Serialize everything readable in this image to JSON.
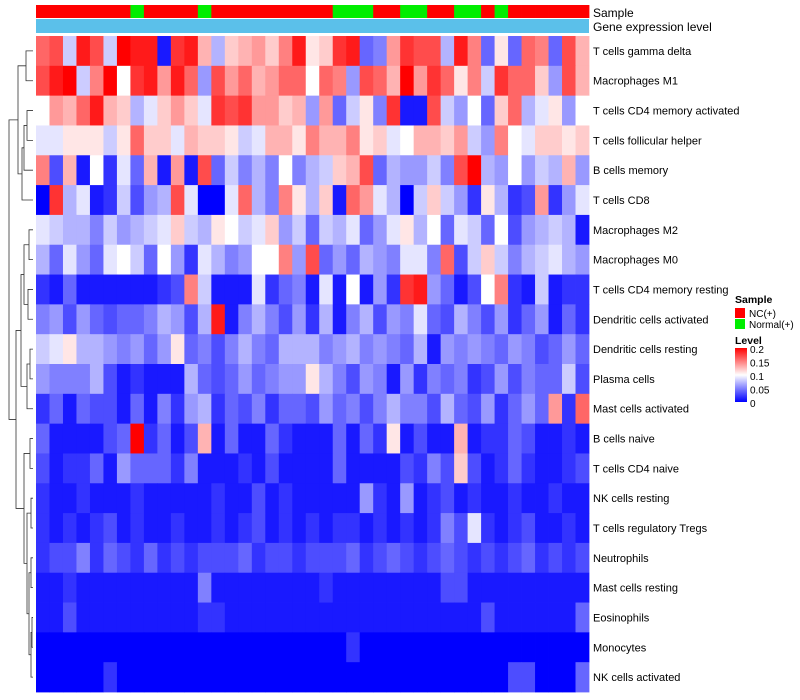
{
  "chart_data": {
    "type": "heatmap",
    "row_labels": [
      "T cells gamma delta",
      "Macrophages M1",
      "T cells CD4 memory activated",
      "T cells follicular helper",
      "B cells memory",
      "T cells CD8",
      "Macrophages M2",
      "Macrophages M0",
      "T cells CD4 memory resting",
      "Dendritic cells activated",
      "Dendritic cells resting",
      "Plasma cells",
      "Mast cells activated",
      "B cells naive",
      "T cells CD4 naive",
      "NK cells resting",
      "T cells regulatory  Tregs",
      "Neutrophils",
      "Mast cells resting",
      "Eosinophils",
      "Monocytes",
      "NK cells activated"
    ],
    "sample_groups": [
      "NC",
      "NC",
      "NC",
      "NC",
      "NC",
      "NC",
      "NC",
      "Normal",
      "NC",
      "NC",
      "NC",
      "NC",
      "Normal",
      "NC",
      "NC",
      "NC",
      "NC",
      "NC",
      "NC",
      "NC",
      "NC",
      "NC",
      "Normal",
      "Normal",
      "Normal",
      "NC",
      "NC",
      "Normal",
      "Normal",
      "NC",
      "NC",
      "Normal",
      "Normal",
      "NC",
      "Normal",
      "NC",
      "NC",
      "NC",
      "NC",
      "NC",
      "NC"
    ],
    "annotation_labels": {
      "sample": "Sample",
      "gene_level": "Gene expression level"
    },
    "legend": {
      "sample_title": "Sample",
      "sample_entries": [
        {
          "label": "NC(+)",
          "color": "#ff0000"
        },
        {
          "label": "Normal(+)",
          "color": "#00ee00"
        }
      ],
      "level_title": "Level",
      "level_ticks": [
        "0.2",
        "0.15",
        "0.1",
        "0.05",
        "0"
      ],
      "level_range": [
        0,
        0.2
      ]
    },
    "gene_level_color": "#5bc0ea",
    "colorscale": {
      "low": "#0000ff",
      "mid": "#ffffff",
      "high": "#ff0000",
      "mid_value": 0.1
    },
    "values": [
      [
        0.16,
        0.17,
        0.08,
        0.19,
        0.17,
        0.08,
        0.2,
        0.19,
        0.19,
        0.01,
        0.18,
        0.19,
        0.13,
        0.07,
        0.12,
        0.13,
        0.14,
        0.12,
        0.15,
        0.19,
        0.11,
        0.12,
        0.18,
        0.19,
        0.04,
        0.05,
        0.14,
        0.18,
        0.17,
        0.17,
        0.07,
        0.19,
        0.15,
        0.04,
        0.11,
        0.04,
        0.16,
        0.15,
        0.04,
        0.17,
        0.13
      ],
      [
        0.17,
        0.19,
        0.2,
        0.08,
        0.15,
        0.2,
        0.1,
        0.18,
        0.19,
        0.14,
        0.19,
        0.16,
        0.06,
        0.17,
        0.14,
        0.16,
        0.13,
        0.14,
        0.16,
        0.16,
        0.1,
        0.16,
        0.15,
        0.06,
        0.17,
        0.16,
        0.13,
        0.2,
        0.14,
        0.18,
        0.16,
        0.11,
        0.15,
        0.08,
        0.18,
        0.16,
        0.16,
        0.12,
        0.06,
        0.17,
        0.13
      ],
      [
        0.1,
        0.14,
        0.13,
        0.16,
        0.19,
        0.13,
        0.12,
        0.07,
        0.09,
        0.12,
        0.14,
        0.12,
        0.09,
        0.18,
        0.17,
        0.18,
        0.14,
        0.14,
        0.12,
        0.13,
        0.06,
        0.14,
        0.04,
        0.08,
        0.11,
        0.05,
        0.18,
        0.01,
        0.01,
        0.17,
        0.08,
        0.06,
        0.1,
        0.04,
        0.12,
        0.16,
        0.07,
        0.09,
        0.11,
        0.06,
        0.1
      ],
      [
        0.09,
        0.09,
        0.11,
        0.11,
        0.11,
        0.08,
        0.11,
        0.16,
        0.12,
        0.12,
        0.09,
        0.13,
        0.12,
        0.12,
        0.11,
        0.08,
        0.09,
        0.13,
        0.13,
        0.11,
        0.15,
        0.13,
        0.13,
        0.15,
        0.11,
        0.12,
        0.09,
        0.1,
        0.13,
        0.13,
        0.12,
        0.14,
        0.08,
        0.06,
        0.15,
        0.1,
        0.09,
        0.12,
        0.12,
        0.11,
        0.12
      ],
      [
        0.15,
        0.03,
        0.13,
        0.01,
        0.1,
        0.02,
        0.09,
        0.04,
        0.13,
        0.01,
        0.14,
        0.01,
        0.17,
        0.04,
        0.08,
        0.05,
        0.07,
        0.05,
        0.1,
        0.05,
        0.07,
        0.08,
        0.12,
        0.13,
        0.17,
        0.04,
        0.07,
        0.06,
        0.06,
        0.08,
        0.05,
        0.17,
        0.2,
        0.07,
        0.06,
        0.1,
        0.06,
        0.08,
        0.07,
        0.13,
        0.06
      ],
      [
        0.0,
        0.18,
        0.07,
        0.09,
        0.01,
        0.02,
        0.08,
        0.03,
        0.06,
        0.07,
        0.17,
        0.09,
        0.0,
        0.0,
        0.09,
        0.16,
        0.07,
        0.05,
        0.15,
        0.11,
        0.07,
        0.12,
        0.01,
        0.16,
        0.14,
        0.09,
        0.07,
        0.0,
        0.08,
        0.12,
        0.08,
        0.06,
        0.02,
        0.11,
        0.07,
        0.02,
        0.03,
        0.14,
        0.02,
        0.06,
        0.09
      ],
      [
        0.09,
        0.08,
        0.07,
        0.07,
        0.05,
        0.08,
        0.06,
        0.07,
        0.08,
        0.09,
        0.12,
        0.08,
        0.07,
        0.11,
        0.1,
        0.08,
        0.09,
        0.12,
        0.06,
        0.08,
        0.04,
        0.08,
        0.07,
        0.09,
        0.04,
        0.06,
        0.09,
        0.11,
        0.07,
        0.1,
        0.04,
        0.09,
        0.08,
        0.04,
        0.1,
        0.03,
        0.06,
        0.07,
        0.08,
        0.07,
        0.01
      ],
      [
        0.07,
        0.04,
        0.09,
        0.06,
        0.04,
        0.09,
        0.1,
        0.08,
        0.04,
        0.1,
        0.06,
        0.02,
        0.09,
        0.07,
        0.05,
        0.06,
        0.1,
        0.1,
        0.15,
        0.06,
        0.17,
        0.04,
        0.06,
        0.04,
        0.07,
        0.06,
        0.05,
        0.09,
        0.09,
        0.05,
        0.16,
        0.03,
        0.08,
        0.12,
        0.08,
        0.05,
        0.07,
        0.08,
        0.09,
        0.07,
        0.06
      ],
      [
        0.02,
        0.01,
        0.04,
        0.01,
        0.01,
        0.01,
        0.01,
        0.01,
        0.01,
        0.02,
        0.03,
        0.15,
        0.08,
        0.01,
        0.01,
        0.01,
        0.09,
        0.02,
        0.04,
        0.05,
        0.01,
        0.09,
        0.01,
        0.1,
        0.01,
        0.06,
        0.02,
        0.18,
        0.19,
        0.06,
        0.04,
        0.01,
        0.03,
        0.1,
        0.15,
        0.02,
        0.01,
        0.08,
        0.01,
        0.02,
        0.02
      ],
      [
        0.05,
        0.06,
        0.03,
        0.06,
        0.04,
        0.03,
        0.04,
        0.04,
        0.05,
        0.07,
        0.06,
        0.03,
        0.07,
        0.19,
        0.01,
        0.05,
        0.07,
        0.05,
        0.03,
        0.06,
        0.02,
        0.07,
        0.01,
        0.05,
        0.07,
        0.03,
        0.06,
        0.05,
        0.09,
        0.04,
        0.03,
        0.07,
        0.05,
        0.03,
        0.06,
        0.02,
        0.04,
        0.06,
        0.01,
        0.04,
        0.02
      ],
      [
        0.08,
        0.09,
        0.11,
        0.07,
        0.07,
        0.06,
        0.05,
        0.06,
        0.04,
        0.06,
        0.11,
        0.04,
        0.05,
        0.03,
        0.05,
        0.07,
        0.05,
        0.04,
        0.07,
        0.07,
        0.07,
        0.05,
        0.06,
        0.07,
        0.05,
        0.06,
        0.05,
        0.04,
        0.07,
        0.01,
        0.06,
        0.05,
        0.06,
        0.05,
        0.04,
        0.06,
        0.05,
        0.03,
        0.04,
        0.06,
        0.04
      ],
      [
        0.06,
        0.05,
        0.05,
        0.05,
        0.07,
        0.03,
        0.01,
        0.02,
        0.01,
        0.01,
        0.01,
        0.07,
        0.04,
        0.03,
        0.04,
        0.06,
        0.04,
        0.05,
        0.06,
        0.06,
        0.11,
        0.07,
        0.05,
        0.03,
        0.06,
        0.05,
        0.01,
        0.06,
        0.02,
        0.05,
        0.04,
        0.05,
        0.02,
        0.03,
        0.06,
        0.03,
        0.05,
        0.04,
        0.04,
        0.08,
        0.03
      ],
      [
        0.02,
        0.04,
        0.01,
        0.04,
        0.03,
        0.03,
        0.01,
        0.04,
        0.01,
        0.05,
        0.02,
        0.06,
        0.07,
        0.02,
        0.04,
        0.03,
        0.05,
        0.02,
        0.04,
        0.04,
        0.03,
        0.06,
        0.04,
        0.05,
        0.03,
        0.05,
        0.07,
        0.05,
        0.05,
        0.03,
        0.07,
        0.04,
        0.03,
        0.06,
        0.02,
        0.04,
        0.06,
        0.04,
        0.14,
        0.02,
        0.16
      ],
      [
        0.04,
        0.01,
        0.01,
        0.01,
        0.01,
        0.03,
        0.04,
        0.2,
        0.02,
        0.04,
        0.01,
        0.03,
        0.13,
        0.01,
        0.04,
        0.01,
        0.01,
        0.04,
        0.02,
        0.01,
        0.01,
        0.01,
        0.04,
        0.01,
        0.04,
        0.02,
        0.11,
        0.01,
        0.03,
        0.01,
        0.01,
        0.13,
        0.01,
        0.02,
        0.02,
        0.04,
        0.03,
        0.01,
        0.01,
        0.02,
        0.01
      ],
      [
        0.03,
        0.01,
        0.02,
        0.02,
        0.04,
        0.01,
        0.06,
        0.04,
        0.04,
        0.04,
        0.02,
        0.05,
        0.01,
        0.01,
        0.01,
        0.02,
        0.01,
        0.03,
        0.01,
        0.01,
        0.01,
        0.01,
        0.04,
        0.01,
        0.01,
        0.01,
        0.01,
        0.03,
        0.02,
        0.05,
        0.03,
        0.12,
        0.03,
        0.01,
        0.02,
        0.04,
        0.02,
        0.01,
        0.01,
        0.02,
        0.03
      ],
      [
        0.02,
        0.01,
        0.01,
        0.02,
        0.01,
        0.01,
        0.01,
        0.02,
        0.01,
        0.01,
        0.01,
        0.01,
        0.01,
        0.02,
        0.01,
        0.01,
        0.03,
        0.01,
        0.02,
        0.01,
        0.01,
        0.01,
        0.01,
        0.01,
        0.06,
        0.02,
        0.01,
        0.06,
        0.01,
        0.02,
        0.03,
        0.01,
        0.02,
        0.01,
        0.01,
        0.02,
        0.01,
        0.01,
        0.02,
        0.01,
        0.01
      ],
      [
        0.02,
        0.01,
        0.02,
        0.01,
        0.02,
        0.03,
        0.01,
        0.02,
        0.01,
        0.01,
        0.02,
        0.01,
        0.01,
        0.02,
        0.01,
        0.02,
        0.03,
        0.01,
        0.02,
        0.01,
        0.02,
        0.01,
        0.02,
        0.02,
        0.01,
        0.02,
        0.01,
        0.02,
        0.01,
        0.02,
        0.05,
        0.03,
        0.09,
        0.02,
        0.01,
        0.02,
        0.03,
        0.01,
        0.01,
        0.02,
        0.01
      ],
      [
        0.02,
        0.03,
        0.03,
        0.05,
        0.02,
        0.04,
        0.03,
        0.02,
        0.04,
        0.02,
        0.03,
        0.02,
        0.03,
        0.03,
        0.03,
        0.04,
        0.02,
        0.03,
        0.03,
        0.02,
        0.03,
        0.03,
        0.03,
        0.04,
        0.02,
        0.03,
        0.04,
        0.03,
        0.02,
        0.03,
        0.04,
        0.03,
        0.02,
        0.03,
        0.02,
        0.03,
        0.04,
        0.02,
        0.03,
        0.02,
        0.03
      ],
      [
        0.01,
        0.01,
        0.02,
        0.01,
        0.01,
        0.01,
        0.01,
        0.01,
        0.01,
        0.01,
        0.01,
        0.01,
        0.05,
        0.01,
        0.01,
        0.01,
        0.01,
        0.01,
        0.01,
        0.01,
        0.01,
        0.02,
        0.01,
        0.01,
        0.01,
        0.01,
        0.01,
        0.01,
        0.01,
        0.01,
        0.03,
        0.03,
        0.01,
        0.01,
        0.01,
        0.01,
        0.01,
        0.01,
        0.01,
        0.01,
        0.01
      ],
      [
        0.01,
        0.01,
        0.03,
        0.01,
        0.01,
        0.01,
        0.01,
        0.01,
        0.01,
        0.01,
        0.01,
        0.01,
        0.02,
        0.02,
        0.01,
        0.01,
        0.01,
        0.01,
        0.01,
        0.01,
        0.01,
        0.01,
        0.01,
        0.01,
        0.01,
        0.01,
        0.01,
        0.01,
        0.01,
        0.01,
        0.01,
        0.01,
        0.01,
        0.03,
        0.01,
        0.01,
        0.01,
        0.01,
        0.01,
        0.01,
        0.04
      ],
      [
        0.0,
        0.0,
        0.0,
        0.0,
        0.0,
        0.0,
        0.0,
        0.0,
        0.0,
        0.0,
        0.0,
        0.0,
        0.0,
        0.0,
        0.0,
        0.0,
        0.0,
        0.0,
        0.0,
        0.0,
        0.0,
        0.0,
        0.0,
        0.02,
        0.0,
        0.0,
        0.0,
        0.0,
        0.0,
        0.0,
        0.0,
        0.0,
        0.0,
        0.0,
        0.0,
        0.0,
        0.0,
        0.0,
        0.0,
        0.0,
        0.0
      ],
      [
        0.0,
        0.0,
        0.0,
        0.0,
        0.0,
        0.02,
        0.0,
        0.0,
        0.0,
        0.0,
        0.0,
        0.0,
        0.0,
        0.0,
        0.0,
        0.0,
        0.0,
        0.0,
        0.0,
        0.0,
        0.0,
        0.0,
        0.0,
        0.0,
        0.0,
        0.0,
        0.0,
        0.0,
        0.0,
        0.0,
        0.0,
        0.0,
        0.0,
        0.0,
        0.0,
        0.03,
        0.03,
        0.0,
        0.0,
        0.0,
        0.04
      ]
    ]
  }
}
